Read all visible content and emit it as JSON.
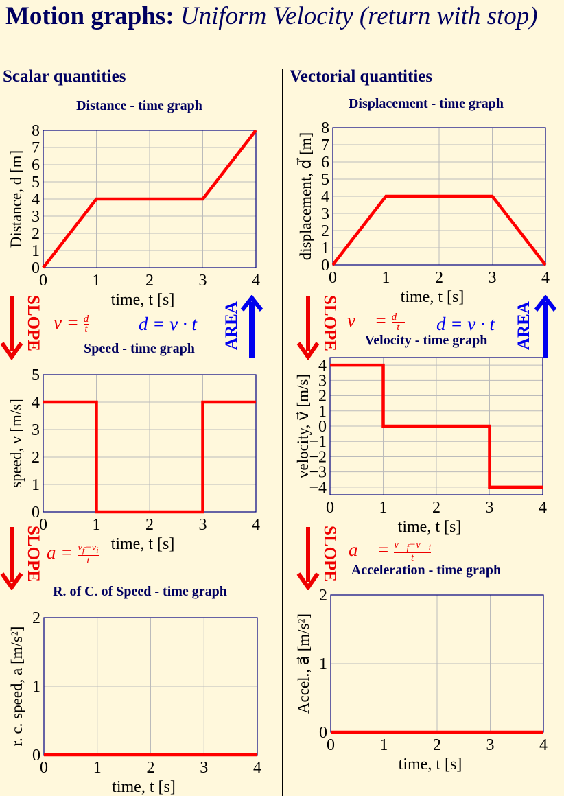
{
  "title": {
    "bold": "Motion graphs:",
    "italic": "Uniform Velocity (return with stop)"
  },
  "sections": {
    "scalar": "Scalar quantities",
    "vector": "Vectorial quantities"
  },
  "labels": {
    "slope": "SLOPE",
    "area": "AREA",
    "v_eq_d_over_t": "v = d/t",
    "d_eq_vt": "d = v · t",
    "a_eq": "a = (v_f − v_i)/t",
    "vec_v_eq": "v⃗ = d⃗/t",
    "vec_d_eq": "d = v · t",
    "vec_a_eq": "a⃗ = (v⃗_f − v⃗_i)/t"
  },
  "colors": {
    "series": "#ff0000",
    "frame": "#000080",
    "heading": "#000060",
    "grid": "#bbbbbb",
    "slope": "#ee0000",
    "area": "#0000ee"
  },
  "chart_data": [
    {
      "type": "line",
      "title": "Distance - time graph",
      "xlabel": "time, t [s]",
      "ylabel": "Distance, d [m]",
      "xlim": [
        0,
        4
      ],
      "ylim": [
        0,
        8
      ],
      "xticks": [
        0,
        1,
        2,
        3,
        4
      ],
      "yticks": [
        0,
        1,
        2,
        3,
        4,
        5,
        6,
        7,
        8
      ],
      "grid": true,
      "series": [
        {
          "x": [
            0,
            1,
            3,
            4
          ],
          "y": [
            0,
            4,
            4,
            8
          ]
        }
      ]
    },
    {
      "type": "line",
      "title": "Displacement - time graph",
      "xlabel": "time, t [s]",
      "ylabel": "displacement, d⃗ [m]",
      "xlim": [
        0,
        4
      ],
      "ylim": [
        0,
        8
      ],
      "xticks": [
        0,
        1,
        2,
        3,
        4
      ],
      "yticks": [
        0,
        1,
        2,
        3,
        4,
        5,
        6,
        7,
        8
      ],
      "grid": true,
      "series": [
        {
          "x": [
            0,
            1,
            3,
            4
          ],
          "y": [
            0,
            4,
            4,
            0
          ]
        }
      ]
    },
    {
      "type": "line",
      "title": "Speed - time graph",
      "xlabel": "time, t [s]",
      "ylabel": "speed, v [m/s]",
      "xlim": [
        0,
        4
      ],
      "ylim": [
        0,
        5
      ],
      "xticks": [
        0,
        1,
        2,
        3,
        4
      ],
      "yticks": [
        0,
        1,
        2,
        3,
        4,
        5
      ],
      "grid": true,
      "series": [
        {
          "x": [
            0,
            1,
            1,
            3,
            3,
            4
          ],
          "y": [
            4,
            4,
            0,
            0,
            4,
            4
          ]
        }
      ]
    },
    {
      "type": "line",
      "title": "Velocity - time graph",
      "xlabel": "time, t [s]",
      "ylabel": "velocity, v⃗ [m/s]",
      "xlim": [
        0,
        4
      ],
      "ylim": [
        -4.5,
        4.5
      ],
      "xticks": [
        0,
        1,
        2,
        3,
        4
      ],
      "yticks": [
        -4,
        -3,
        -2,
        -1,
        0,
        1,
        2,
        3,
        4
      ],
      "grid": true,
      "series": [
        {
          "x": [
            0,
            1,
            1,
            3,
            3,
            4
          ],
          "y": [
            4,
            4,
            0,
            0,
            -4,
            -4
          ]
        }
      ]
    },
    {
      "type": "line",
      "title": "R. of C. of Speed - time graph",
      "xlabel": "time, t [s]",
      "ylabel": "r. c. speed, a [m/s²]",
      "xlim": [
        0,
        4
      ],
      "ylim": [
        0,
        2
      ],
      "xticks": [
        0,
        1,
        2,
        3,
        4
      ],
      "yticks": [
        0,
        1,
        2
      ],
      "grid": true,
      "series": [
        {
          "x": [
            0,
            4
          ],
          "y": [
            0,
            0
          ]
        }
      ]
    },
    {
      "type": "line",
      "title": "Acceleration - time graph",
      "xlabel": "time, t [s]",
      "ylabel": "Accel., a⃗ [m/s²]",
      "xlim": [
        0,
        4
      ],
      "ylim": [
        0,
        2
      ],
      "xticks": [
        0,
        1,
        2,
        3,
        4
      ],
      "yticks": [
        0,
        1,
        2
      ],
      "grid": true,
      "series": [
        {
          "x": [
            0,
            4
          ],
          "y": [
            0,
            0
          ]
        }
      ]
    }
  ]
}
